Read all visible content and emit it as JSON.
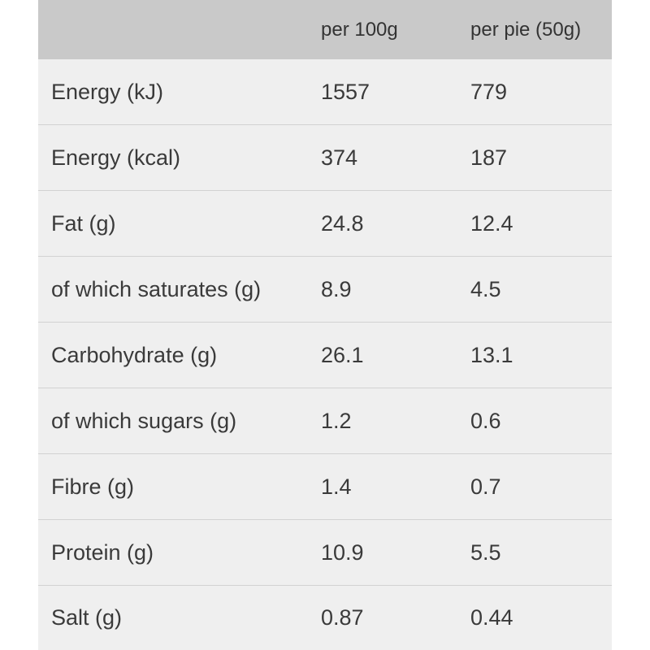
{
  "table": {
    "headers": [
      "",
      "per 100g",
      "per pie (50g)"
    ],
    "rows": [
      [
        "Energy (kJ)",
        "1557",
        "779"
      ],
      [
        "Energy (kcal)",
        "374",
        "187"
      ],
      [
        "Fat (g)",
        "24.8",
        "12.4"
      ],
      [
        "of which saturates (g)",
        "8.9",
        "4.5"
      ],
      [
        "Carbohydrate (g)",
        "26.1",
        "13.1"
      ],
      [
        "of which sugars (g)",
        "1.2",
        "0.6"
      ],
      [
        "Fibre (g)",
        "1.4",
        "0.7"
      ],
      [
        "Protein (g)",
        "10.9",
        "5.5"
      ],
      [
        "Salt (g)",
        "0.87",
        "0.44"
      ]
    ]
  },
  "colors": {
    "header_bg": "#c9c9c9",
    "row_bg": "#efefef",
    "divider": "#d2d2d2",
    "text": "#3a3a3a"
  }
}
